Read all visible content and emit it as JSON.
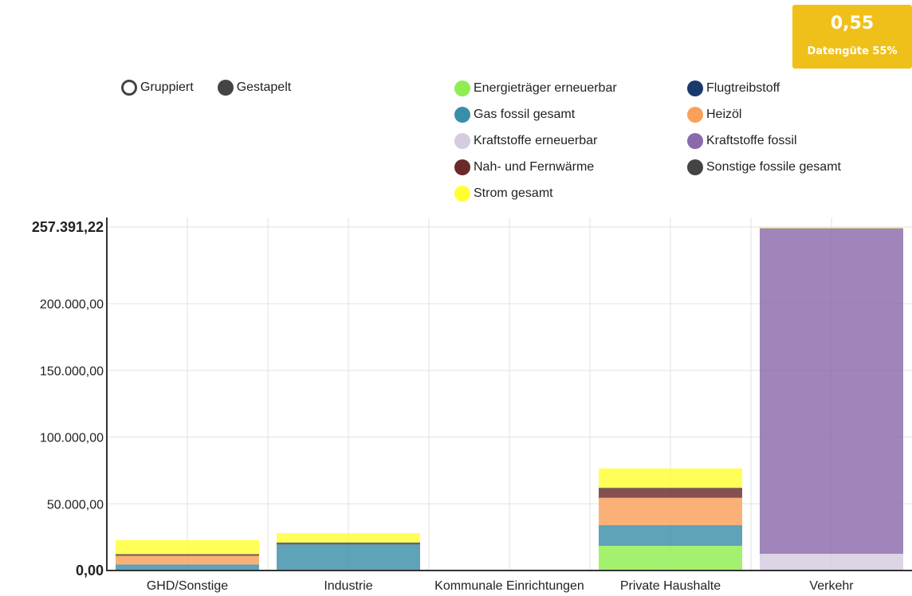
{
  "quality_badge": {
    "value": "0,55",
    "label": "Datengüte 55%"
  },
  "mode_toggle": {
    "grouped_label": "Gruppiert",
    "stacked_label": "Gestapelt",
    "selected": "stacked"
  },
  "chart_data": {
    "type": "bar",
    "stacked": true,
    "categories": [
      "GHD/Sonstige",
      "Industrie",
      "Kommunale Einrichtungen",
      "Private Haushalte",
      "Verkehr"
    ],
    "series": [
      {
        "name": "Energieträger erneuerbar",
        "color": "#90ee50",
        "values": [
          0,
          0,
          0,
          18500,
          0
        ]
      },
      {
        "name": "Flugtreibstoff",
        "color": "#1a3a6b",
        "values": [
          0,
          0,
          0,
          0,
          0
        ]
      },
      {
        "name": "Gas fossil gesamt",
        "color": "#3a8fa8",
        "values": [
          4500,
          20000,
          0,
          15500,
          0
        ]
      },
      {
        "name": "Heizöl",
        "color": "#f9a05a",
        "values": [
          6500,
          0,
          0,
          20500,
          0
        ]
      },
      {
        "name": "Kraftstoffe erneuerbar",
        "color": "#d6cce0",
        "values": [
          0,
          0,
          0,
          0,
          12500
        ]
      },
      {
        "name": "Kraftstoffe fossil",
        "color": "#8a6aab",
        "values": [
          0,
          0,
          0,
          0,
          244000
        ]
      },
      {
        "name": "Nah- und Fernwärme",
        "color": "#6b2a2a",
        "values": [
          800,
          200,
          0,
          7000,
          0
        ]
      },
      {
        "name": "Sonstige fossile gesamt",
        "color": "#444444",
        "values": [
          500,
          800,
          0,
          500,
          0
        ]
      },
      {
        "name": "Strom gesamt",
        "color": "#ffff33",
        "values": [
          10500,
          7000,
          0,
          14500,
          891
        ]
      }
    ],
    "ylim": [
      0,
      257391.22
    ],
    "y_ticks": [
      {
        "value": 0,
        "label": "0,00"
      },
      {
        "value": 50000,
        "label": "50.000,00"
      },
      {
        "value": 100000,
        "label": "100.000,00"
      },
      {
        "value": 150000,
        "label": "150.000,00"
      },
      {
        "value": 200000,
        "label": "200.000,00"
      },
      {
        "value": 257391.22,
        "label": "257.391,22"
      }
    ],
    "grid": true,
    "legend_position": "top"
  }
}
